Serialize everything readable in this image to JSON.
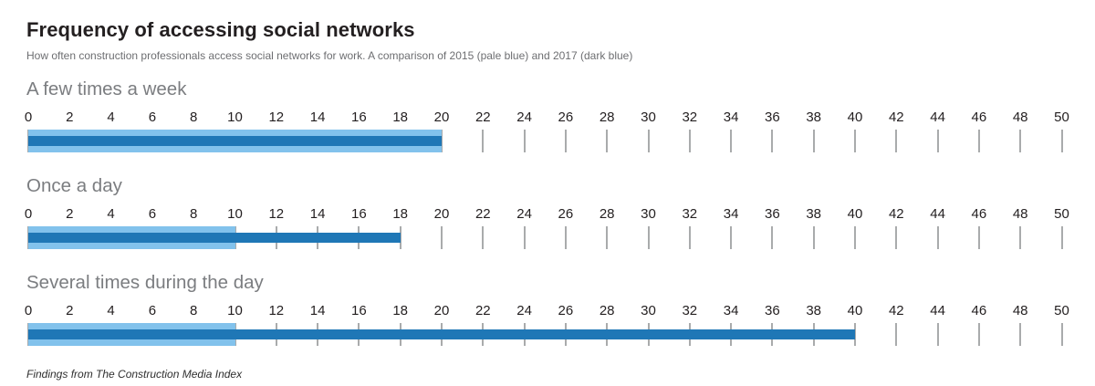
{
  "header": {
    "title": "Frequency of accessing social networks",
    "subtitle": "How often construction professionals access social networks for work. A comparison of 2015 (pale blue) and 2017 (dark blue)"
  },
  "chart_data": {
    "type": "bar",
    "orientation": "horizontal",
    "title": "Frequency of accessing social networks",
    "axis": {
      "min": 0,
      "max": 50,
      "step": 2
    },
    "tick_color": "#a9abac",
    "categories": [
      "A few times a week",
      "Once a day",
      "Several times during the day"
    ],
    "series": [
      {
        "name": "2015",
        "label": "2015 (pale blue)",
        "color": "#82c2ec",
        "values": [
          20,
          10,
          10
        ]
      },
      {
        "name": "2017",
        "label": "2017 (dark blue)",
        "color": "#1f77b6",
        "values": [
          20,
          18,
          40
        ]
      }
    ],
    "legend_position": "in-subtitle",
    "grid": "ticks-only"
  },
  "footer": {
    "source": "Findings from The Construction Media Index"
  }
}
